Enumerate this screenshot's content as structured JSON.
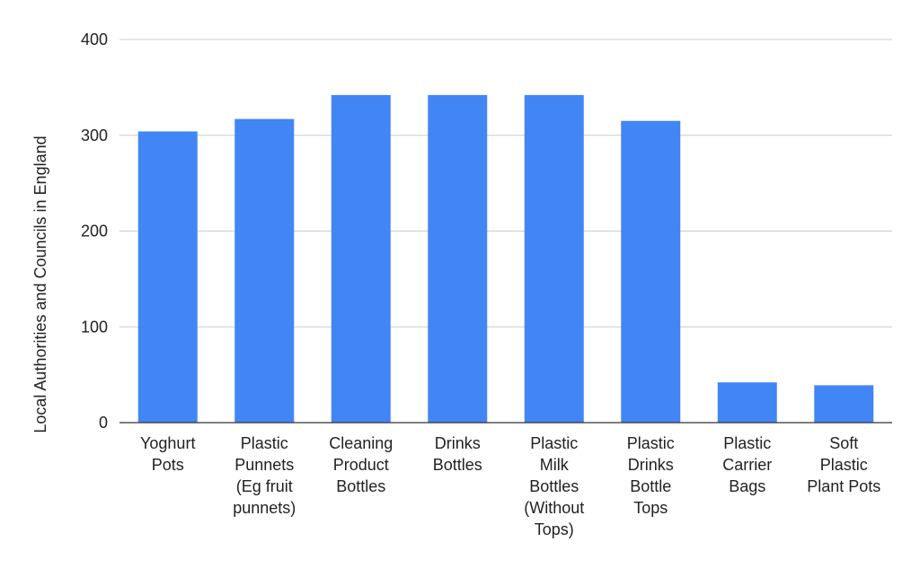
{
  "chart_data": {
    "type": "bar",
    "title": "",
    "xlabel": "",
    "ylabel": "Local Authorities and Councils in England",
    "categories": [
      [
        "Yoghurt",
        "Pots"
      ],
      [
        "Plastic",
        "Punnets",
        "(Eg fruit",
        "punnets)"
      ],
      [
        "Cleaning",
        "Product",
        "Bottles"
      ],
      [
        "Drinks",
        "Bottles"
      ],
      [
        "Plastic",
        "Milk",
        "Bottles",
        "(Without",
        "Tops)"
      ],
      [
        "Plastic",
        "Drinks",
        "Bottle",
        "Tops"
      ],
      [
        "Plastic",
        "Carrier",
        "Bags"
      ],
      [
        "Soft",
        "Plastic",
        "Plant Pots"
      ]
    ],
    "values": [
      304,
      317,
      342,
      342,
      342,
      315,
      42,
      39
    ],
    "ylim": [
      0,
      400
    ],
    "yticks": [
      0,
      100,
      200,
      300,
      400
    ],
    "grid": true,
    "bar_color": "#4285F4"
  }
}
